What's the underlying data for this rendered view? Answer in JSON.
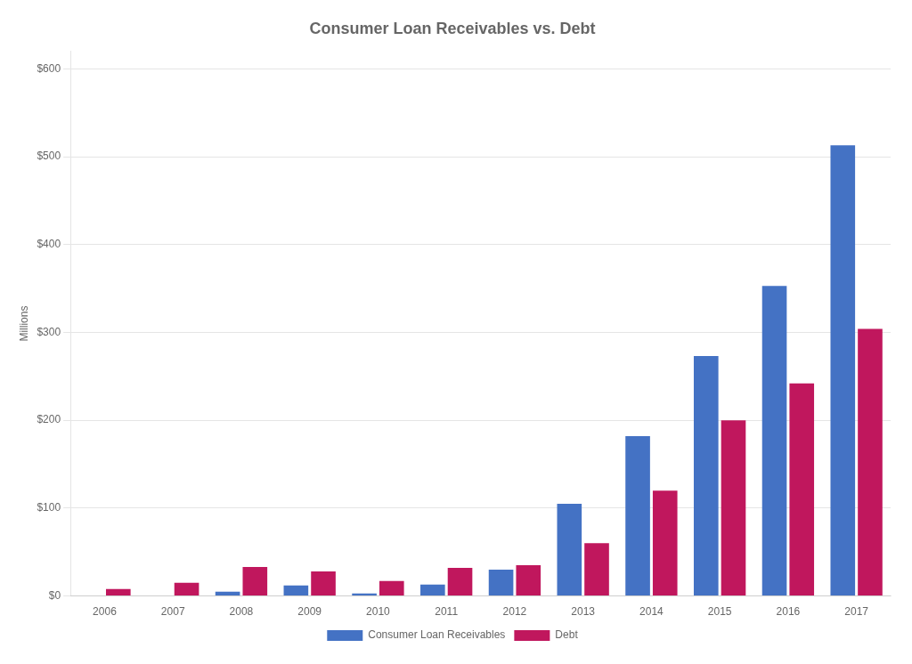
{
  "chart_data": {
    "type": "bar",
    "title": "Consumer Loan Receivables vs. Debt",
    "ylabel": "Millions",
    "categories": [
      "2006",
      "2007",
      "2008",
      "2009",
      "2010",
      "2011",
      "2012",
      "2013",
      "2014",
      "2015",
      "2016",
      "2017"
    ],
    "series": [
      {
        "name": "Consumer Loan Receivables",
        "color": "#4472C4",
        "values": [
          0,
          0,
          5,
          12,
          3,
          13,
          30,
          105,
          182,
          273,
          353,
          513
        ]
      },
      {
        "name": "Debt",
        "color": "#C0175D",
        "values": [
          8,
          15,
          33,
          28,
          17,
          32,
          35,
          60,
          120,
          200,
          242,
          304
        ]
      }
    ],
    "ylim": [
      0,
      620
    ],
    "yticks": [
      {
        "value": 0,
        "label": "$0"
      },
      {
        "value": 100,
        "label": "$100"
      },
      {
        "value": 200,
        "label": "$200"
      },
      {
        "value": 300,
        "label": "$300"
      },
      {
        "value": 400,
        "label": "$400"
      },
      {
        "value": 500,
        "label": "$500"
      },
      {
        "value": 600,
        "label": "$600"
      }
    ],
    "grid": true,
    "legend": "bottom"
  }
}
